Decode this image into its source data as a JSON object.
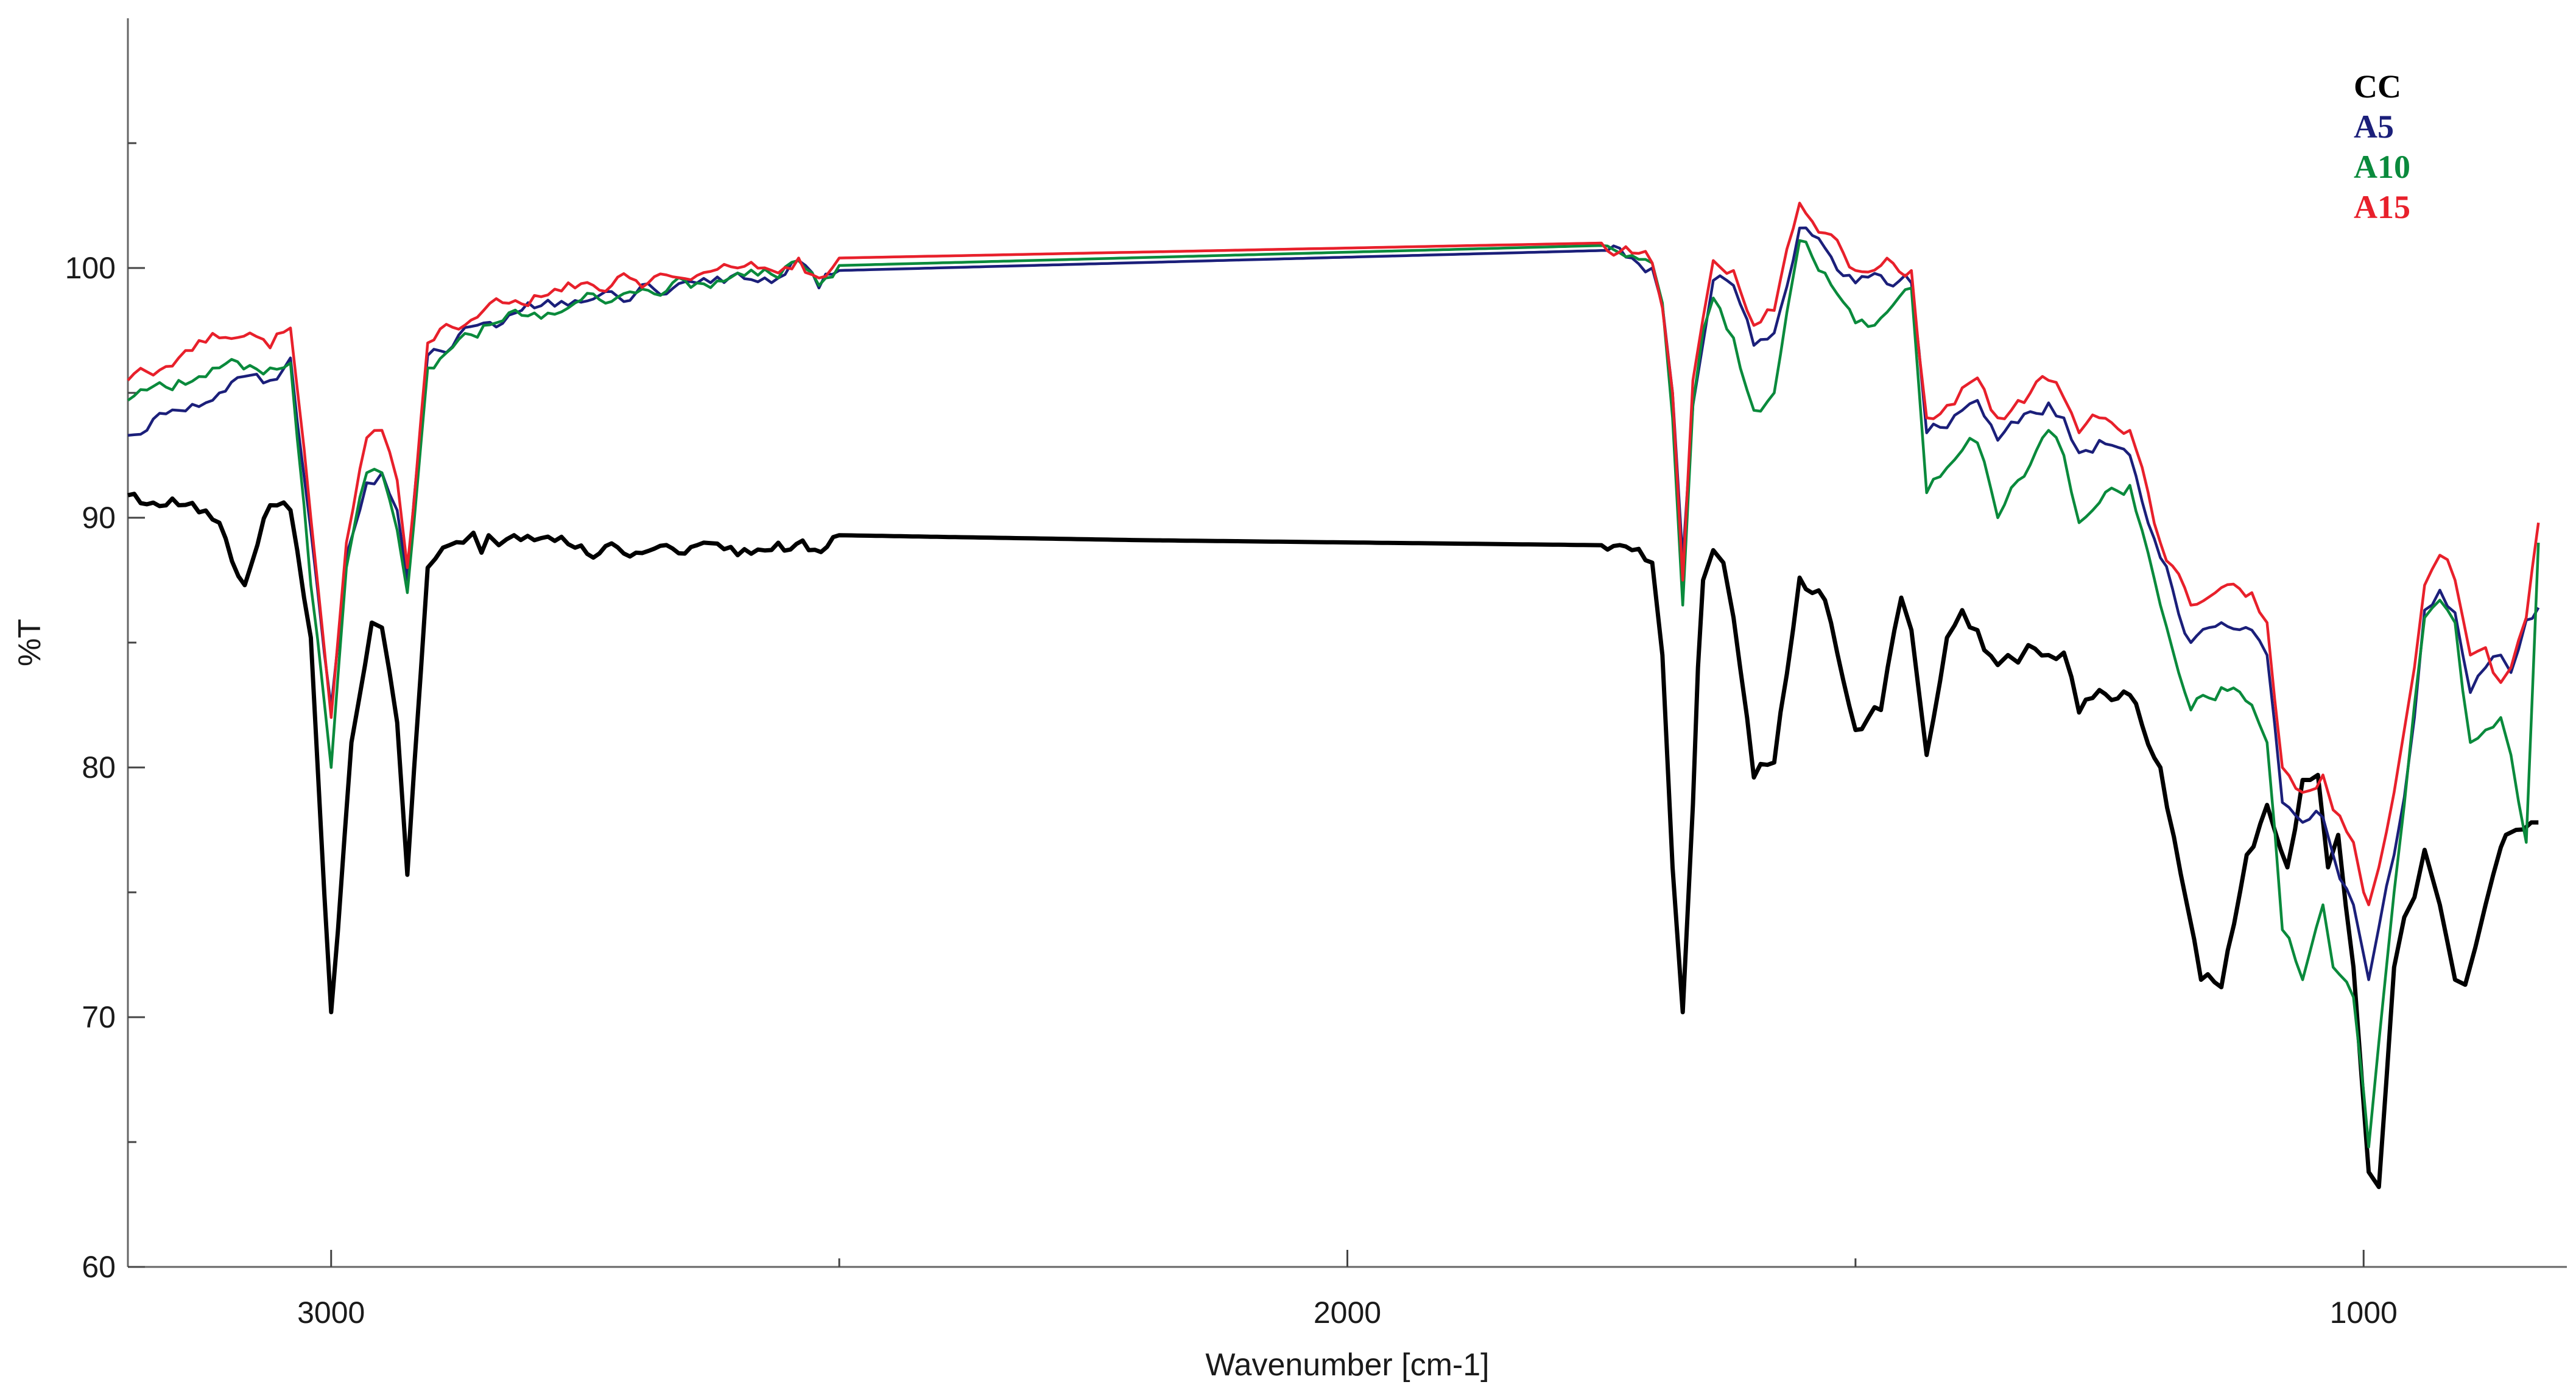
{
  "chart_data": {
    "type": "line",
    "title": "",
    "xlabel": "Wavenumber [cm-1]",
    "ylabel": "%T",
    "xlim": [
      3200,
      800
    ],
    "ylim": [
      60,
      110
    ],
    "x_reversed": true,
    "grid": false,
    "legend_position": "top-right",
    "x_ticks": [
      3000,
      2000,
      1000
    ],
    "x_minor_ticks": [
      2500,
      1500
    ],
    "y_ticks": [
      60,
      70,
      80,
      90,
      100
    ],
    "y_minor_ticks": [
      65,
      75,
      85,
      95,
      105
    ],
    "series": [
      {
        "name": "CC",
        "color": "#000000",
        "x": [
          3200,
          3150,
          3110,
          3085,
          3060,
          3040,
          3020,
          3000,
          2980,
          2960,
          2950,
          2935,
          2925,
          2905,
          2890,
          2870,
          2860,
          2852,
          2845,
          2835,
          2820,
          2800,
          2760,
          2700,
          2640,
          2600,
          2560,
          2530,
          2500,
          2200,
          1750,
          1720,
          1700,
          1690,
          1680,
          1670,
          1660,
          1655,
          1650,
          1640,
          1630,
          1620,
          1600,
          1580,
          1555,
          1530,
          1500,
          1475,
          1455,
          1445,
          1430,
          1410,
          1395,
          1380,
          1360,
          1350,
          1340,
          1330,
          1310,
          1295,
          1280,
          1260,
          1230,
          1200,
          1160,
          1140,
          1115,
          1095,
          1075,
          1060,
          1045,
          1035,
          1025,
          1010,
          1000,
          995,
          985,
          970,
          960,
          950,
          940,
          925,
          910,
          900,
          890,
          880,
          865,
          860,
          850,
          835,
          828
        ],
        "values": [
          90.9,
          90.5,
          89.8,
          87.3,
          90.5,
          90.3,
          85.2,
          70.2,
          81.0,
          85.8,
          85.6,
          81.8,
          75.7,
          88.0,
          88.8,
          89.0,
          89.4,
          88.6,
          89.3,
          88.9,
          89.3,
          89.1,
          88.8,
          88.6,
          88.9,
          88.5,
          89.0,
          88.7,
          89.3,
          89.1,
          88.9,
          88.7,
          88.2,
          84.5,
          76.0,
          70.2,
          78.5,
          84.0,
          87.5,
          88.7,
          88.2,
          86.0,
          79.6,
          80.2,
          87.6,
          86.7,
          81.5,
          82.3,
          86.8,
          85.5,
          80.5,
          85.2,
          86.3,
          85.5,
          84.1,
          84.5,
          84.2,
          84.9,
          84.5,
          84.6,
          82.2,
          83.1,
          82.9,
          80.0,
          71.5,
          71.2,
          76.5,
          78.5,
          76.0,
          79.5,
          79.7,
          76.0,
          77.3,
          72.0,
          66.5,
          63.8,
          63.2,
          72.0,
          74.0,
          74.8,
          76.7,
          74.5,
          71.5,
          71.3,
          72.8,
          74.5,
          76.8,
          77.3,
          77.5,
          77.8,
          77.8
        ]
      },
      {
        "name": "A5",
        "color": "#1b1f7a",
        "x": [
          3200,
          3150,
          3110,
          3080,
          3060,
          3040,
          3020,
          3000,
          2985,
          2965,
          2950,
          2935,
          2925,
          2905,
          2850,
          2800,
          2760,
          2700,
          2640,
          2600,
          2560,
          2540,
          2520,
          2500,
          1750,
          1720,
          1700,
          1690,
          1680,
          1670,
          1660,
          1650,
          1640,
          1620,
          1600,
          1580,
          1555,
          1530,
          1500,
          1475,
          1445,
          1430,
          1410,
          1395,
          1380,
          1360,
          1340,
          1310,
          1295,
          1280,
          1260,
          1230,
          1200,
          1170,
          1140,
          1110,
          1095,
          1080,
          1060,
          1040,
          1030,
          1010,
          1000,
          995,
          985,
          970,
          960,
          950,
          940,
          925,
          910,
          895,
          880,
          865,
          855,
          840,
          828
        ],
        "values": [
          93.3,
          94.3,
          95.0,
          95.7,
          95.5,
          96.4,
          89.5,
          82.4,
          88.5,
          91.4,
          91.8,
          90.3,
          87.5,
          96.5,
          97.8,
          98.4,
          98.7,
          99.0,
          99.4,
          99.8,
          99.6,
          100.3,
          99.2,
          99.9,
          100.7,
          100.4,
          100.0,
          98.5,
          95.0,
          88.3,
          94.5,
          97.0,
          99.5,
          99.3,
          96.9,
          97.4,
          101.6,
          100.8,
          99.4,
          99.7,
          99.4,
          93.4,
          93.6,
          94.3,
          94.7,
          93.1,
          93.8,
          94.6,
          94.0,
          92.6,
          93.1,
          92.5,
          88.4,
          85.0,
          85.8,
          85.5,
          84.5,
          78.6,
          77.8,
          78.0,
          76.5,
          74.5,
          72.5,
          71.5,
          73.6,
          76.5,
          78.8,
          82.0,
          86.3,
          87.1,
          86.2,
          83.0,
          84.0,
          84.5,
          83.8,
          85.9,
          86.4
        ]
      },
      {
        "name": "A10",
        "color": "#0a8a3c",
        "x": [
          3200,
          3150,
          3110,
          3080,
          3060,
          3040,
          3020,
          3000,
          2985,
          2965,
          2950,
          2935,
          2925,
          2905,
          2850,
          2800,
          2760,
          2700,
          2640,
          2600,
          2560,
          2540,
          2520,
          2500,
          1750,
          1720,
          1700,
          1690,
          1680,
          1670,
          1660,
          1650,
          1640,
          1620,
          1600,
          1580,
          1555,
          1530,
          1500,
          1475,
          1445,
          1430,
          1410,
          1395,
          1380,
          1360,
          1340,
          1310,
          1295,
          1280,
          1260,
          1230,
          1200,
          1170,
          1140,
          1110,
          1095,
          1080,
          1060,
          1040,
          1030,
          1010,
          1000,
          995,
          985,
          970,
          960,
          950,
          940,
          925,
          910,
          895,
          880,
          865,
          855,
          840,
          828
        ],
        "values": [
          94.7,
          95.5,
          96.0,
          96.1,
          96.0,
          96.2,
          87.3,
          80.0,
          88.0,
          91.8,
          91.8,
          89.5,
          87.0,
          96.0,
          97.7,
          98.2,
          98.6,
          99.0,
          99.4,
          99.8,
          99.6,
          100.3,
          99.3,
          100.1,
          100.9,
          100.5,
          100.2,
          98.6,
          94.0,
          86.5,
          94.5,
          97.5,
          98.8,
          97.2,
          94.3,
          95.0,
          101.1,
          99.8,
          97.8,
          98.0,
          99.2,
          91.0,
          92.0,
          92.7,
          93.0,
          90.0,
          91.5,
          93.5,
          92.5,
          89.8,
          90.6,
          91.3,
          86.5,
          82.3,
          83.2,
          82.5,
          81.0,
          73.5,
          71.5,
          74.5,
          72.0,
          70.8,
          67.0,
          64.8,
          69.0,
          75.0,
          78.5,
          82.5,
          86.0,
          86.7,
          85.8,
          81.0,
          81.5,
          82.0,
          80.5,
          77.0,
          89.0
        ]
      },
      {
        "name": "A15",
        "color": "#e8202b",
        "x": [
          3200,
          3150,
          3110,
          3080,
          3060,
          3040,
          3020,
          3000,
          2985,
          2965,
          2950,
          2935,
          2925,
          2905,
          2850,
          2800,
          2760,
          2700,
          2640,
          2600,
          2560,
          2540,
          2520,
          2500,
          1750,
          1720,
          1700,
          1690,
          1680,
          1670,
          1660,
          1650,
          1640,
          1620,
          1600,
          1580,
          1555,
          1530,
          1500,
          1475,
          1445,
          1430,
          1410,
          1395,
          1380,
          1360,
          1340,
          1310,
          1295,
          1280,
          1260,
          1230,
          1200,
          1170,
          1140,
          1110,
          1095,
          1080,
          1060,
          1040,
          1030,
          1010,
          1000,
          995,
          985,
          970,
          960,
          950,
          940,
          925,
          910,
          895,
          880,
          865,
          855,
          840,
          828
        ],
        "values": [
          95.5,
          96.4,
          97.2,
          97.4,
          96.8,
          97.6,
          90.0,
          82.0,
          89.0,
          93.2,
          93.5,
          91.5,
          88.0,
          97.0,
          98.3,
          98.9,
          99.2,
          99.5,
          99.7,
          100.0,
          99.8,
          100.4,
          99.6,
          100.4,
          101.0,
          100.6,
          100.2,
          98.4,
          95.0,
          87.5,
          95.5,
          98.0,
          100.3,
          99.9,
          97.7,
          98.3,
          102.6,
          101.4,
          99.9,
          100.1,
          99.9,
          94.0,
          94.5,
          95.2,
          95.6,
          94.0,
          94.7,
          95.5,
          94.8,
          93.4,
          94.0,
          93.5,
          89.0,
          86.5,
          87.2,
          87.0,
          85.8,
          80.0,
          79.0,
          79.7,
          78.3,
          77.0,
          75.0,
          74.5,
          76.0,
          79.0,
          81.5,
          84.0,
          87.3,
          88.5,
          87.5,
          84.5,
          84.8,
          83.4,
          84.0,
          86.0,
          89.8
        ]
      }
    ]
  }
}
